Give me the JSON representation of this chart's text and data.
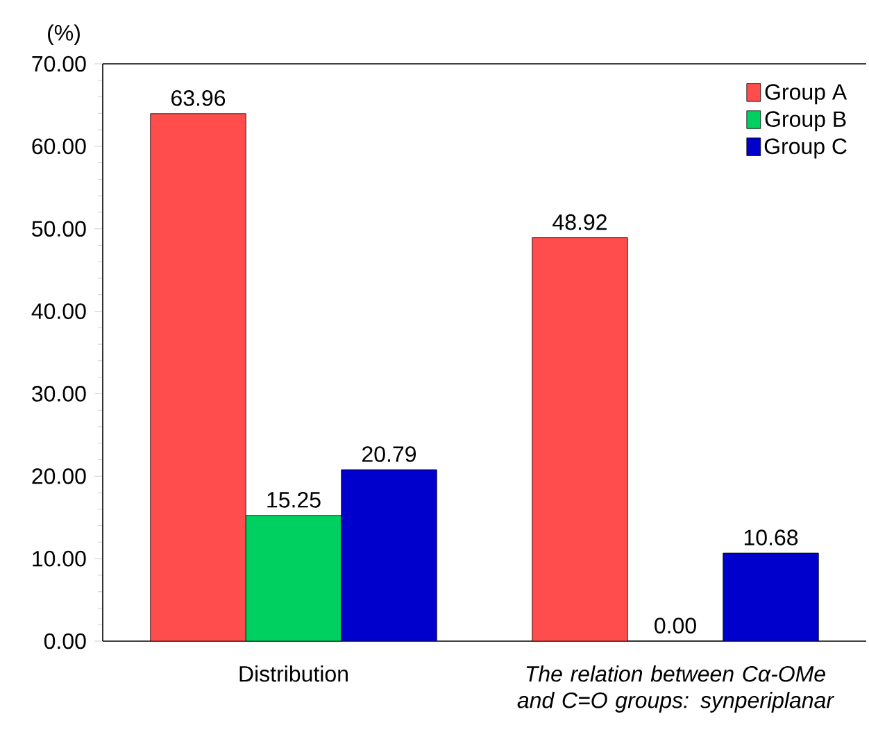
{
  "chart_data": {
    "type": "bar",
    "ylabel": "(%)",
    "categories": [
      "Distribution",
      "The relation between Cα-OMe and C=O groups: synperiplanar"
    ],
    "series": [
      {
        "name": "Group A",
        "color": "#ff4d4d",
        "values": [
          63.96,
          48.92
        ],
        "value_labels": [
          "63.96",
          "48.92"
        ]
      },
      {
        "name": "Group B",
        "color": "#00d060",
        "values": [
          15.25,
          0
        ],
        "value_labels": [
          "15.25",
          "0.00"
        ]
      },
      {
        "name": "Group C",
        "color": "#0000cc",
        "values": [
          20.79,
          10.68
        ],
        "value_labels": [
          "20.79",
          "10.68"
        ]
      }
    ],
    "ylim": [
      0,
      70
    ],
    "yticks": [
      {
        "value": 0,
        "label": "0.00"
      },
      {
        "value": 10,
        "label": "10.00"
      },
      {
        "value": 20,
        "label": "20.00"
      },
      {
        "value": 30,
        "label": "30.00"
      },
      {
        "value": 40,
        "label": "40.00"
      },
      {
        "value": 50,
        "label": "50.00"
      },
      {
        "value": 60,
        "label": "60.00"
      },
      {
        "value": 70,
        "label": "70.00"
      }
    ],
    "legend": "top right",
    "grid": false
  }
}
